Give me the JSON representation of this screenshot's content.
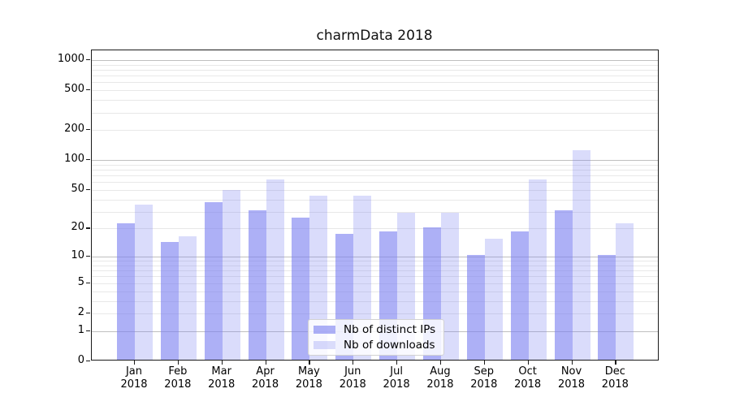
{
  "chart_data": {
    "type": "bar",
    "title": "charmData 2018",
    "categories": [
      "Jan 2018",
      "Feb 2018",
      "Mar 2018",
      "Apr 2018",
      "May 2018",
      "Jun 2018",
      "Jul 2018",
      "Aug 2018",
      "Sep 2018",
      "Oct 2018",
      "Nov 2018",
      "Dec 2018"
    ],
    "months": [
      "Jan",
      "Feb",
      "Mar",
      "Apr",
      "May",
      "Jun",
      "Jul",
      "Aug",
      "Sep",
      "Oct",
      "Nov",
      "Dec"
    ],
    "year": "2018",
    "series": [
      {
        "name": "Nb of distinct IPs",
        "color": "rgba(122,128,240,0.62)",
        "solid_color": "#a8abf4",
        "values": [
          22,
          14,
          36,
          30,
          25,
          17,
          18,
          20,
          10,
          18,
          30,
          10
        ]
      },
      {
        "name": "Nb of downloads",
        "color": "rgba(122,128,240,0.28)",
        "solid_color": "#d9dbfa",
        "values": [
          34,
          16,
          48,
          62,
          42,
          42,
          28,
          28,
          15,
          61,
          120,
          22
        ]
      }
    ],
    "base_color": "#7a80f0",
    "yscale": "symlog",
    "yticks": [
      0,
      1,
      2,
      5,
      10,
      20,
      50,
      100,
      200,
      500,
      1000
    ],
    "ytick_labels": [
      "0",
      "1",
      "2",
      "5",
      "10",
      "20",
      "50",
      "100",
      "200",
      "500",
      "1000"
    ],
    "ylim": [
      0,
      1250
    ],
    "grid": true,
    "legend_position": "lower center"
  }
}
